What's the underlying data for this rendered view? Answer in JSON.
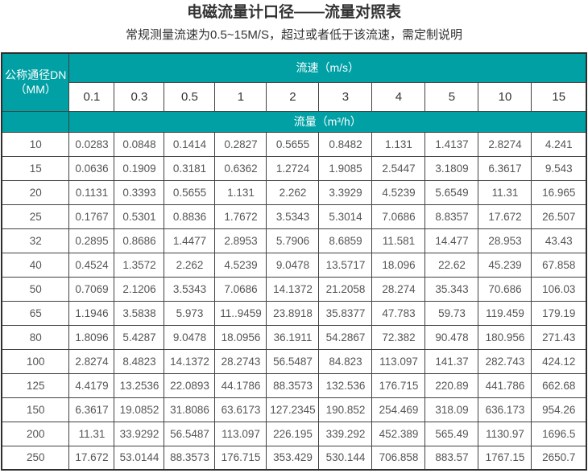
{
  "page": {
    "title": "电磁流量计口径——流量对照表",
    "subtitle": "常规测量流速为0.5~15M/S，超过或者低于该流速，需定制说明"
  },
  "colors": {
    "header_teal": "#00A0A5",
    "border_dark": "#2e2e2e",
    "title_text": "#333333",
    "data_text": "#555555"
  },
  "chart_data": {
    "type": "table",
    "title": "电磁流量计口径——流量对照表",
    "subtitle": "常规测量流速为0.5~15M/S，超过或者低于该流速，需定制说明",
    "corner_header": {
      "line1": "公称通径DN",
      "line2": "（MM）"
    },
    "velocity_header": "流速（m/s）",
    "flow_header": "流量（m³/h）",
    "velocities": [
      "0.1",
      "0.3",
      "0.5",
      "1",
      "2",
      "3",
      "4",
      "5",
      "10",
      "15"
    ],
    "rows": [
      {
        "dn": "10",
        "values": [
          "0.0283",
          "0.0848",
          "0.1414",
          "0.2827",
          "0.5655",
          "0.8482",
          "1.131",
          "1.4137",
          "2.8274",
          "4.241"
        ]
      },
      {
        "dn": "15",
        "values": [
          "0.0636",
          "0.1909",
          "0.3181",
          "0.6362",
          "1.2724",
          "1.9085",
          "2.5447",
          "3.1809",
          "6.3617",
          "9.543"
        ]
      },
      {
        "dn": "20",
        "values": [
          "0.1131",
          "0.3393",
          "0.5655",
          "1.131",
          "2.262",
          "3.3929",
          "4.5239",
          "5.6549",
          "11.31",
          "16.965"
        ]
      },
      {
        "dn": "25",
        "values": [
          "0.1767",
          "0.5301",
          "0.8836",
          "1.7672",
          "3.5343",
          "5.3014",
          "7.0686",
          "8.8357",
          "17.672",
          "26.507"
        ]
      },
      {
        "dn": "32",
        "values": [
          "0.2895",
          "0.8686",
          "1.4477",
          "2.8953",
          "5.7906",
          "8.6859",
          "11.581",
          "14.477",
          "28.953",
          "43.43"
        ]
      },
      {
        "dn": "40",
        "values": [
          "0.4524",
          "1.3572",
          "2.262",
          "4.5239",
          "9.0478",
          "13.5717",
          "18.096",
          "22.62",
          "45.239",
          "67.858"
        ]
      },
      {
        "dn": "50",
        "values": [
          "0.7069",
          "2.1206",
          "3.5343",
          "7.0686",
          "14.1372",
          "21.2058",
          "28.274",
          "35.343",
          "70.686",
          "106.03"
        ]
      },
      {
        "dn": "65",
        "values": [
          "1.1946",
          "3.5838",
          "5.973",
          "11..9459",
          "23.8918",
          "35.8377",
          "47.783",
          "59.73",
          "119.459",
          "179.19"
        ]
      },
      {
        "dn": "80",
        "values": [
          "1.8096",
          "5.4287",
          "9.0478",
          "18.0956",
          "36.1911",
          "54.2867",
          "72.382",
          "90.478",
          "180.956",
          "271.43"
        ]
      },
      {
        "dn": "100",
        "values": [
          "2.8274",
          "8.4823",
          "14.1372",
          "28.2743",
          "56.5487",
          "84.823",
          "113.097",
          "141.37",
          "282.743",
          "424.12"
        ]
      },
      {
        "dn": "125",
        "values": [
          "4.4179",
          "13.2536",
          "22.0893",
          "44.1786",
          "88.3573",
          "132.536",
          "176.715",
          "220.89",
          "441.786",
          "662.68"
        ]
      },
      {
        "dn": "150",
        "values": [
          "6.3617",
          "19.0852",
          "31.8086",
          "63.6173",
          "127.2345",
          "190.852",
          "254.469",
          "318.09",
          "636.173",
          "954.26"
        ]
      },
      {
        "dn": "200",
        "values": [
          "11.31",
          "33.9292",
          "56.5487",
          "113.097",
          "226.195",
          "339.292",
          "452.389",
          "565.49",
          "1130.97",
          "1696.5"
        ]
      },
      {
        "dn": "250",
        "values": [
          "17.672",
          "53.0144",
          "88.3573",
          "176.715",
          "353.429",
          "530.144",
          "706.858",
          "883.57",
          "1767.15",
          "2650.7"
        ]
      }
    ]
  }
}
